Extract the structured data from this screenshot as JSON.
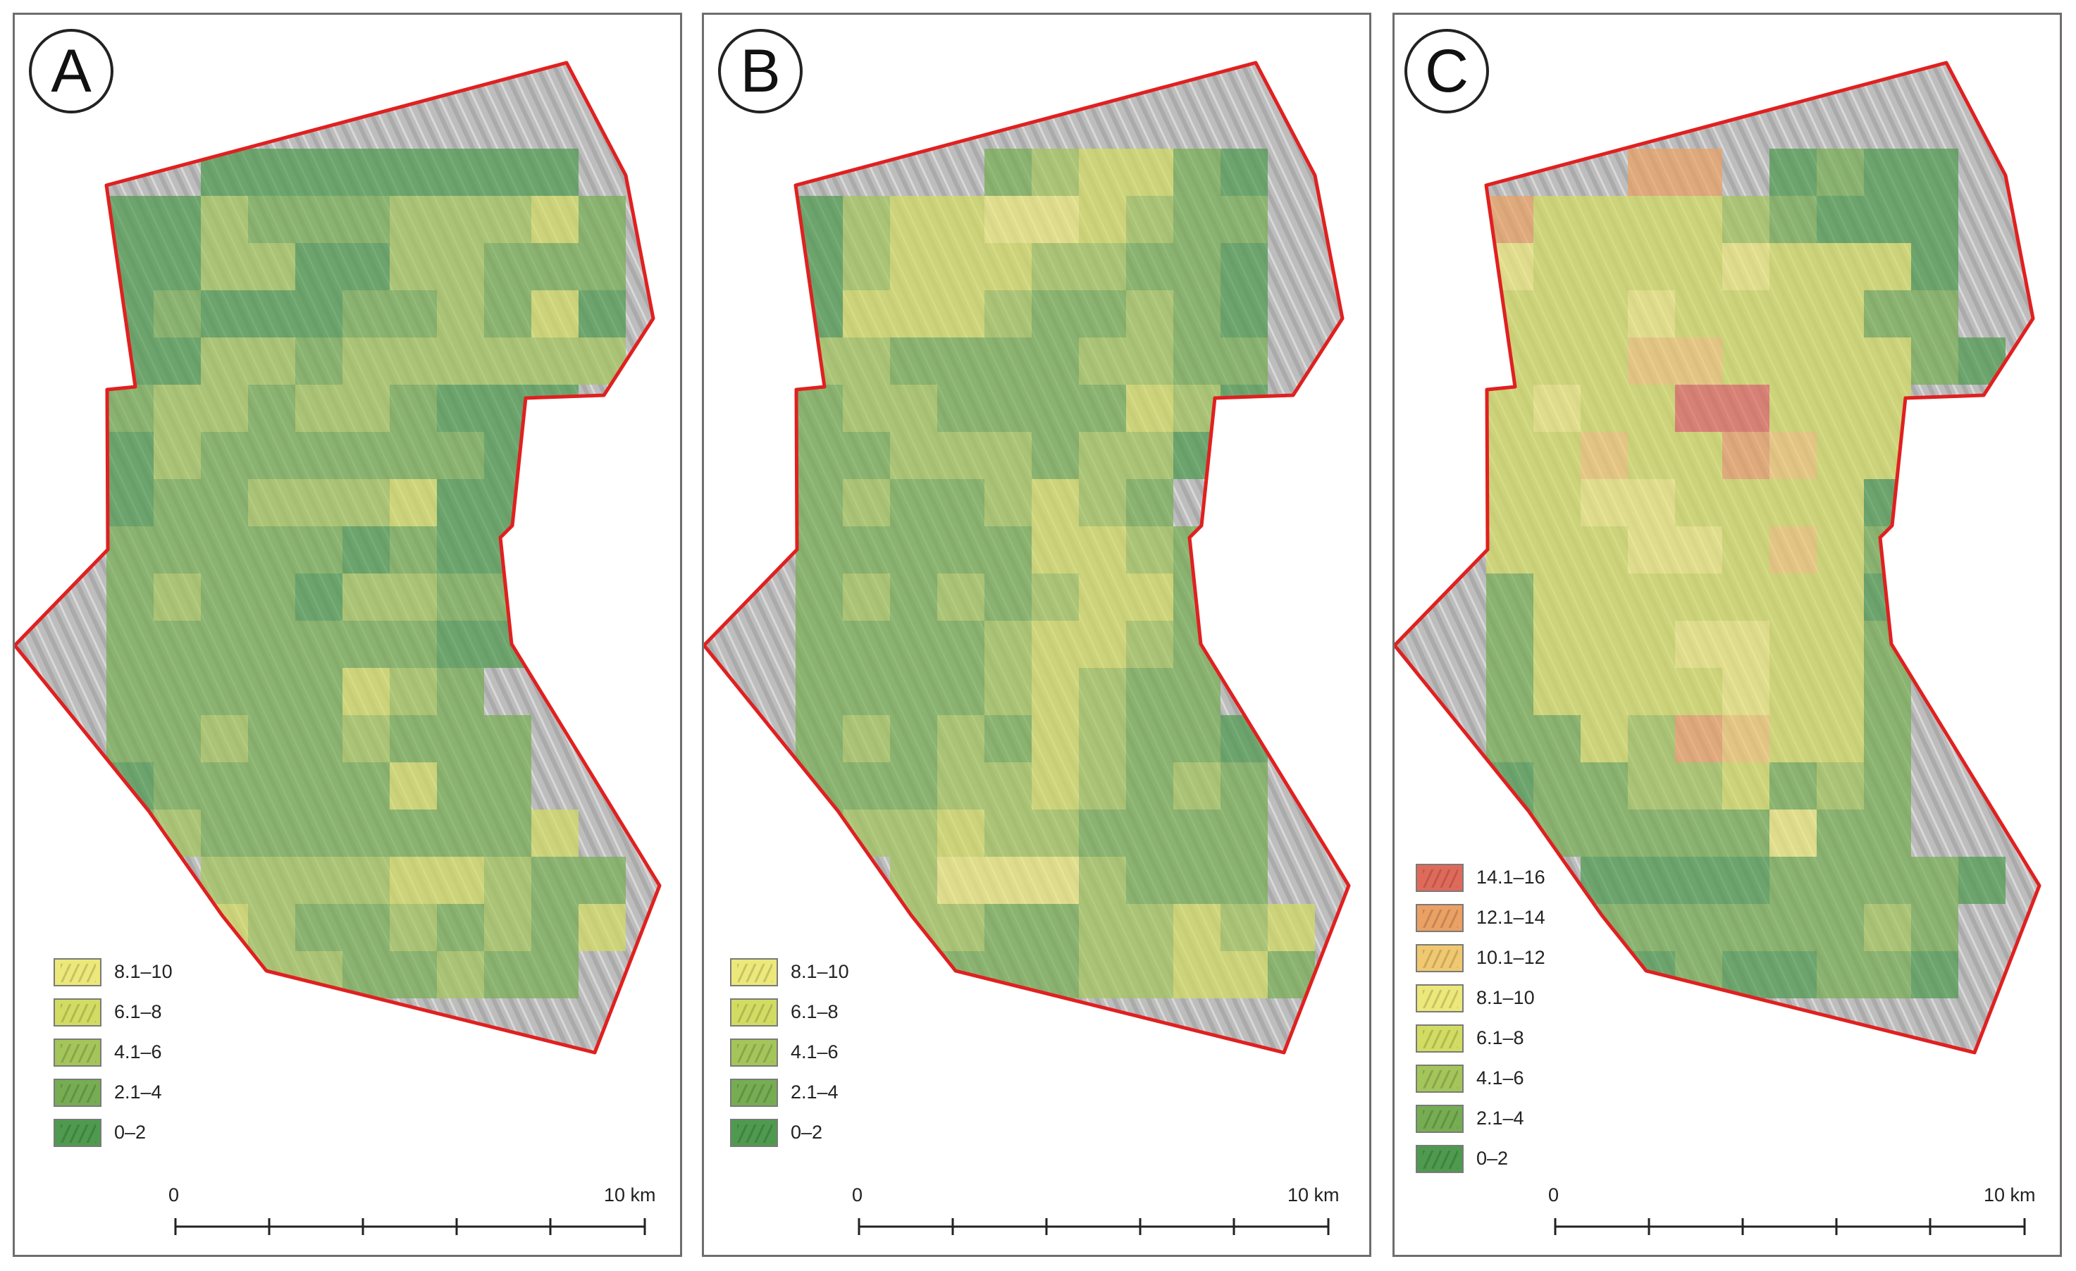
{
  "panels": [
    {
      "id": "A",
      "label": "A",
      "legend": [
        "8.1–10",
        "6.1–8",
        "4.1–6",
        "2.1–4",
        "0–2"
      ],
      "scalebar": {
        "start": "0",
        "end": "10 km"
      }
    },
    {
      "id": "B",
      "label": "B",
      "legend": [
        "8.1–10",
        "6.1–8",
        "4.1–6",
        "2.1–4",
        "0–2"
      ],
      "scalebar": {
        "start": "0",
        "end": "10 km"
      }
    },
    {
      "id": "C",
      "label": "C",
      "legend": [
        "14.1–16",
        "12.1–14",
        "10.1–12",
        "8.1–10",
        "6.1–8",
        "4.1–6",
        "2.1–4",
        "0–2"
      ],
      "scalebar": {
        "start": "0",
        "end": "10 km"
      }
    }
  ],
  "class_colors": {
    "0–2": "#4e9a4e",
    "2.1–4": "#76ad52",
    "4.1–6": "#a4c55a",
    "6.1–8": "#d2dc62",
    "8.1–10": "#ece87a",
    "10.1–12": "#f0c870",
    "12.1–14": "#eba064",
    "14.1–16": "#e06a5a"
  },
  "boundary_color": "#e02020",
  "hillshade_color": "#bdbdbd"
}
